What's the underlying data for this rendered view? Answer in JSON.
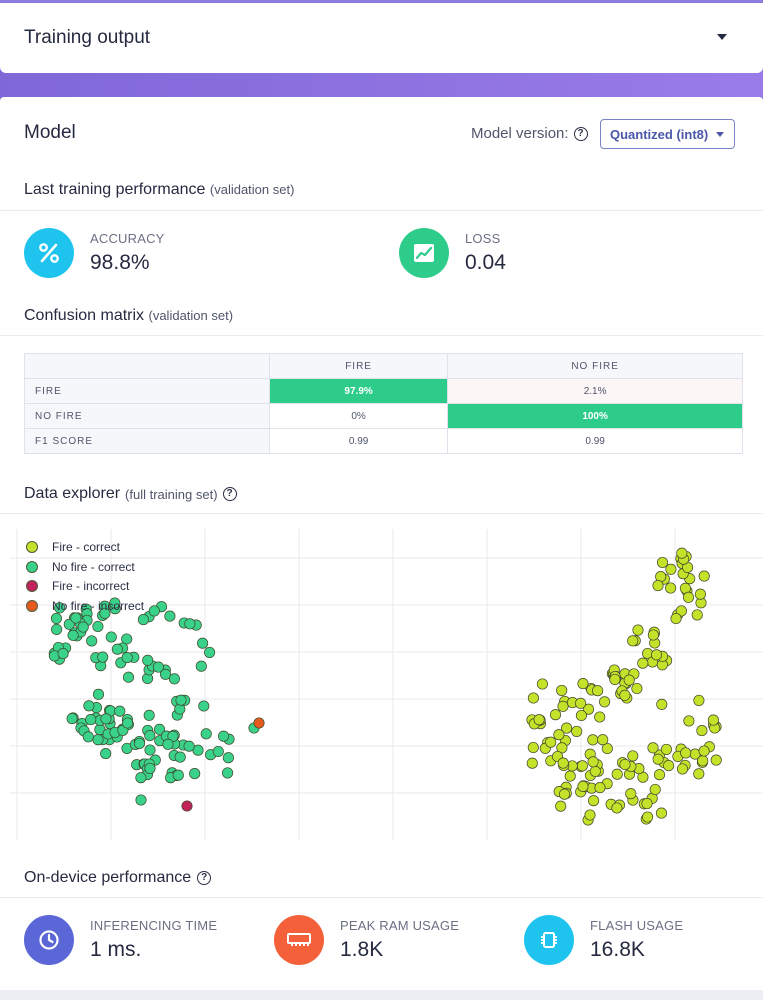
{
  "header": {
    "title": "Training output"
  },
  "model": {
    "title": "Model",
    "version_label": "Model version:",
    "version_value": "Quantized (int8)"
  },
  "last_training": {
    "title": "Last training performance",
    "subtitle": "(validation set)",
    "accuracy": {
      "label": "ACCURACY",
      "value": "98.8%",
      "icon": "percent-icon",
      "color": "#1ec4ee"
    },
    "loss": {
      "label": "LOSS",
      "value": "0.04",
      "icon": "trend-chart-icon",
      "color": "#2ecc8b"
    }
  },
  "confusion_matrix": {
    "title": "Confusion matrix",
    "subtitle": "(validation set)",
    "columns": [
      "",
      "FIRE",
      "NO FIRE"
    ],
    "rows": [
      {
        "label": "FIRE",
        "cells": [
          "97.9%",
          "2.1%"
        ]
      },
      {
        "label": "NO FIRE",
        "cells": [
          "0%",
          "100%"
        ]
      },
      {
        "label": "F1 SCORE",
        "cells": [
          "0.99",
          "0.99"
        ]
      }
    ],
    "highlight_color": "#2ecc8b"
  },
  "data_explorer": {
    "title": "Data explorer",
    "subtitle": "(full training set)",
    "legend": [
      {
        "label": "Fire - correct",
        "color": "#c6e12a"
      },
      {
        "label": "No fire - correct",
        "color": "#3ad28a"
      },
      {
        "label": "Fire - incorrect",
        "color": "#c0245a"
      },
      {
        "label": "No fire - incorrect",
        "color": "#e55a1f"
      }
    ]
  },
  "on_device": {
    "title": "On-device performance",
    "inferencing": {
      "label": "INFERENCING TIME",
      "value": "1 ms.",
      "icon": "clock-icon",
      "color": "#5b67d6"
    },
    "ram": {
      "label": "PEAK RAM USAGE",
      "value": "1.8K",
      "icon": "ram-icon",
      "color": "#f4603a"
    },
    "flash": {
      "label": "FLASH USAGE",
      "value": "16.8K",
      "icon": "chip-icon",
      "color": "#1ec4ee"
    }
  }
}
